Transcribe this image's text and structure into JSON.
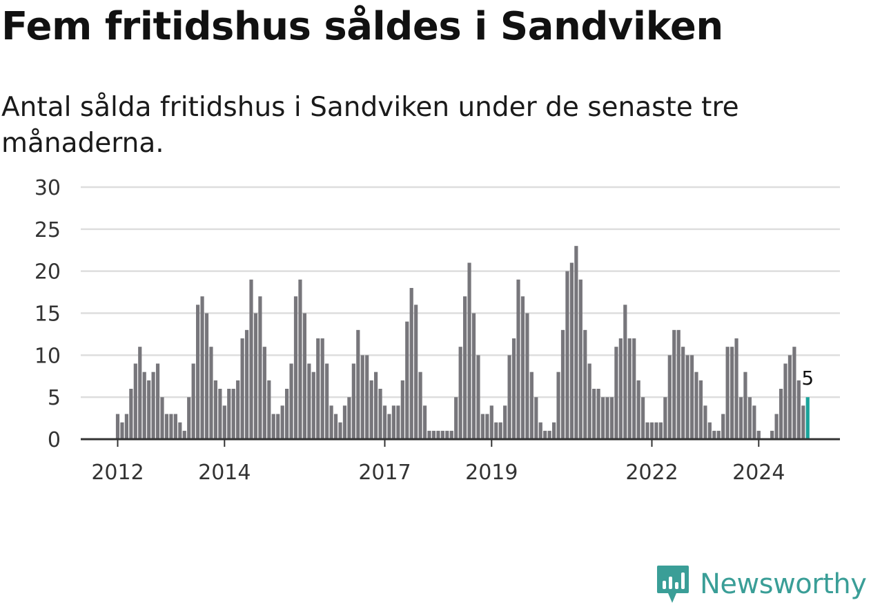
{
  "title": "Fem fritidshus såldes i Sandviken",
  "subtitle": "Antal sålda fritidshus i Sandviken under de senaste tre månaderna.",
  "brand": {
    "name": "Newsworthy",
    "icon": "newsworthy-logo-icon",
    "color": "#3a9e97"
  },
  "colors": {
    "bar": "#77767b",
    "highlight": "#1aa39a",
    "grid": "#dddddd",
    "axis": "#333333"
  },
  "chart_data": {
    "type": "bar",
    "title": "",
    "xlabel": "",
    "ylabel": "",
    "ylim": [
      0,
      30
    ],
    "yticks": [
      0,
      5,
      10,
      15,
      20,
      25,
      30
    ],
    "grid": true,
    "x_tick_labels": [
      {
        "label": "2012",
        "index": 0
      },
      {
        "label": "2014",
        "index": 24
      },
      {
        "label": "2017",
        "index": 60
      },
      {
        "label": "2019",
        "index": 84
      },
      {
        "label": "2022",
        "index": 120
      },
      {
        "label": "2024",
        "index": 144
      }
    ],
    "values": [
      3,
      2,
      3,
      6,
      9,
      11,
      8,
      7,
      8,
      9,
      5,
      3,
      3,
      3,
      2,
      1,
      5,
      9,
      16,
      17,
      15,
      11,
      7,
      6,
      4,
      6,
      6,
      7,
      12,
      13,
      19,
      15,
      17,
      11,
      7,
      3,
      3,
      4,
      6,
      9,
      17,
      19,
      15,
      9,
      8,
      12,
      12,
      9,
      4,
      3,
      2,
      4,
      5,
      9,
      13,
      10,
      10,
      7,
      8,
      6,
      4,
      3,
      4,
      4,
      7,
      14,
      18,
      16,
      8,
      4,
      1,
      1,
      1,
      1,
      1,
      1,
      5,
      11,
      17,
      21,
      15,
      10,
      3,
      3,
      4,
      2,
      2,
      4,
      10,
      12,
      19,
      17,
      15,
      8,
      5,
      2,
      1,
      1,
      2,
      8,
      13,
      20,
      21,
      23,
      19,
      13,
      9,
      6,
      6,
      5,
      5,
      5,
      11,
      12,
      16,
      12,
      12,
      7,
      5,
      2,
      2,
      2,
      2,
      5,
      10,
      13,
      13,
      11,
      10,
      10,
      8,
      7,
      4,
      2,
      1,
      1,
      3,
      11,
      11,
      12,
      5,
      8,
      5,
      4,
      1,
      0,
      0,
      1,
      3,
      6,
      9,
      10,
      11,
      7,
      4,
      5
    ],
    "last_value_label": "5",
    "highlight_last": true
  }
}
